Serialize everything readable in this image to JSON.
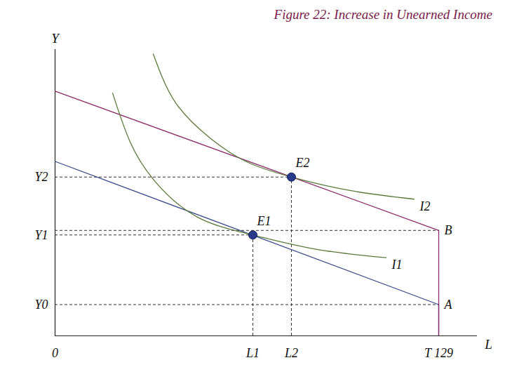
{
  "chart_data": {
    "type": "line",
    "title": "Figure 22: Increase in Unearned Income",
    "x_label": "L",
    "y_label": "Y",
    "xlim": [
      0,
      602
    ],
    "ylim": [
      0,
      440
    ],
    "xticks": [
      0,
      {
        "value": 282,
        "label": "L1"
      },
      {
        "value": 337,
        "label": "L2"
      },
      {
        "value": 547,
        "label": "T 129"
      }
    ],
    "yticks": [
      {
        "value": 48,
        "label": "Y0"
      },
      {
        "value": 155,
        "label": "Y1"
      },
      {
        "value": 244,
        "label": "Y2"
      }
    ],
    "grid": false,
    "series": [
      {
        "name": "A",
        "color": "#3a4a8a",
        "x": [
          0,
          547
        ],
        "values": [
          268,
          48
        ]
      },
      {
        "name": "B",
        "color": "#8b2a6a",
        "x": [
          0,
          547
        ],
        "values": [
          376,
          162
        ]
      },
      {
        "name": "I1",
        "color": "#5a7a3a",
        "x": [
          82,
          107,
          142,
          202,
          282,
          372,
          472
        ],
        "values": [
          373,
          298,
          238,
          183,
          155,
          133,
          120
        ]
      },
      {
        "name": "I2",
        "color": "#5a7a3a",
        "x": [
          140,
          172,
          222,
          272,
          337,
          422,
          512
        ],
        "values": [
          433,
          358,
          303,
          268,
          244,
          223,
          210
        ]
      }
    ],
    "points": [
      {
        "name": "E1",
        "x": 282,
        "y": 155
      },
      {
        "name": "E2",
        "x": 337,
        "y": 244
      }
    ],
    "marker": "circle"
  }
}
